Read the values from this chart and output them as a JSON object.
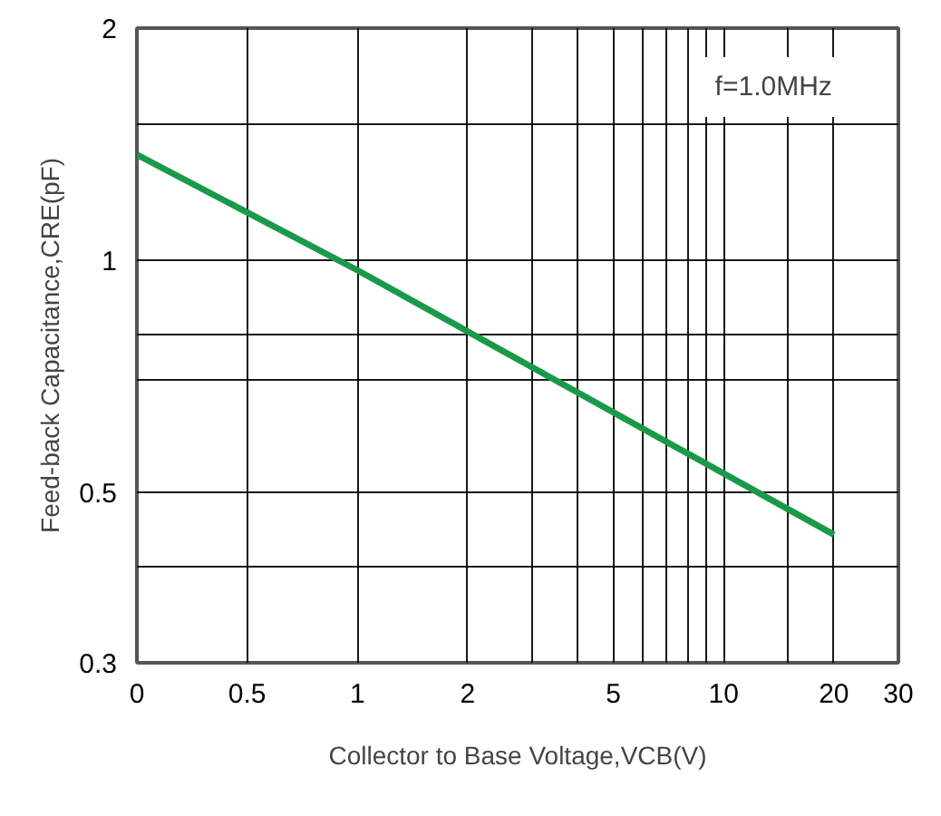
{
  "chart_data": {
    "type": "line",
    "xlabel": "Collector to Base Voltage,VCB(V)",
    "ylabel": "Feed-back Capacitance,CRE(pF)",
    "annotations": [
      "f=1.0MHz"
    ],
    "x": [
      0.25,
      1,
      20
    ],
    "series": [
      {
        "color": "#1a9a48",
        "values": [
          1.37,
          0.97,
          0.44
        ]
      }
    ],
    "log": "xy",
    "xlim": [
      0.25,
      30
    ],
    "xticks": [
      {
        "value": 0.25,
        "label": "0"
      },
      0.5,
      1,
      2,
      {
        "value": 3,
        "label": null
      },
      {
        "value": 4,
        "label": null
      },
      5,
      {
        "value": 6,
        "label": null
      },
      {
        "value": 7,
        "label": null
      },
      {
        "value": 8,
        "label": null
      },
      {
        "value": 9,
        "label": null
      },
      10,
      {
        "value": 15,
        "label": null
      },
      20,
      30
    ],
    "ylim": [
      0.3,
      2
    ],
    "yticks": [
      0.3,
      {
        "value": 0.4,
        "label": null
      },
      0.5,
      {
        "value": 0.7,
        "label": null
      },
      {
        "value": 0.8,
        "label": null
      },
      1,
      {
        "value": 1.5,
        "label": null
      },
      2
    ],
    "grid": true,
    "line_style": "solid"
  }
}
